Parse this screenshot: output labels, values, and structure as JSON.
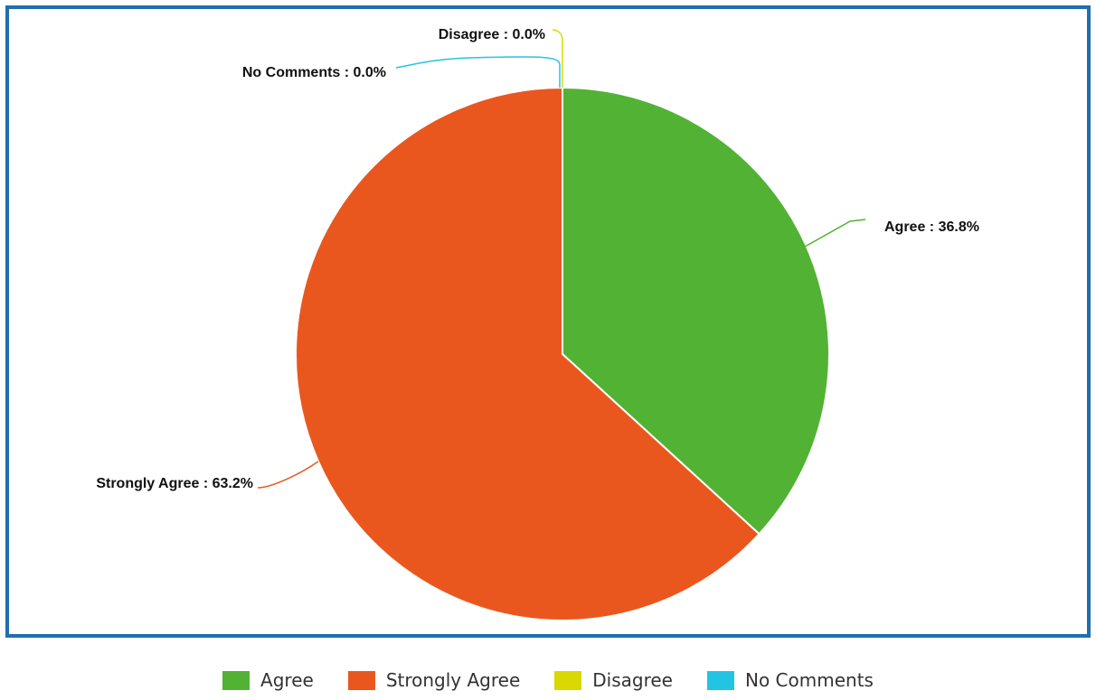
{
  "chart_data": {
    "type": "pie",
    "title": "",
    "slices": [
      {
        "name": "Agree",
        "value": 36.8,
        "label": "Agree : 36.8%",
        "color": "#52b234"
      },
      {
        "name": "Strongly Agree",
        "value": 63.2,
        "label": "Strongly Agree : 63.2%",
        "color": "#ea571e"
      },
      {
        "name": "Disagree",
        "value": 0.0,
        "label": "Disagree : 0.0%",
        "color": "#d9d800"
      },
      {
        "name": "No Comments",
        "value": 0.0,
        "label": "No Comments : 0.0%",
        "color": "#22c4e3"
      }
    ],
    "legend_position": "bottom-center",
    "frame_color": "#1f6fae"
  }
}
